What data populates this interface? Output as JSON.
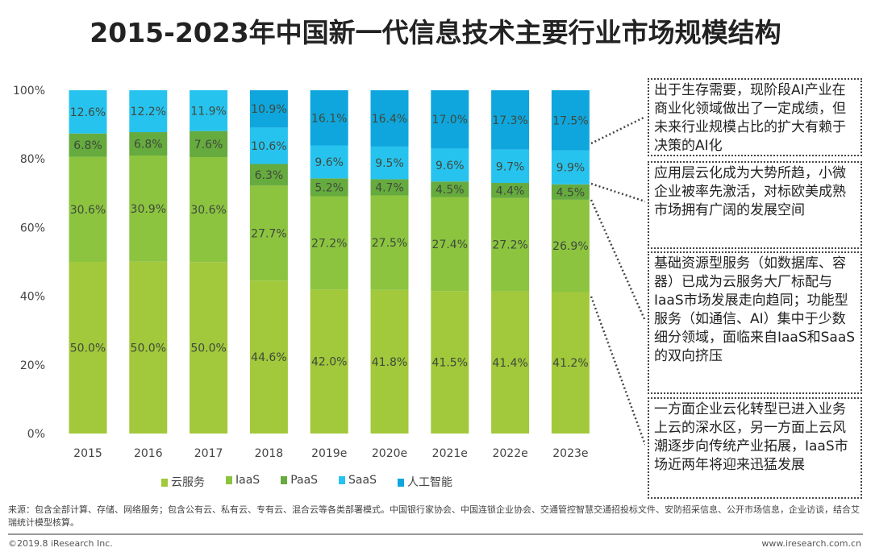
{
  "title": "2015-2023年中国新一代信息技术主要行业市场规模结构",
  "chart_data": {
    "type": "bar",
    "stacked": true,
    "title": "2015-2023年中国新一代信息技术主要行业市场规模结构",
    "categories": [
      "2015",
      "2016",
      "2017",
      "2018",
      "2019e",
      "2020e",
      "2021e",
      "2022e",
      "2023e"
    ],
    "series": [
      {
        "name": "云服务",
        "color": "#a2c83b",
        "values": [
          50.0,
          50.0,
          50.0,
          44.6,
          42.0,
          41.8,
          41.5,
          41.4,
          41.2
        ]
      },
      {
        "name": "IaaS",
        "color": "#8cc440",
        "values": [
          30.6,
          30.9,
          30.6,
          27.7,
          27.2,
          27.5,
          27.4,
          27.2,
          26.9
        ]
      },
      {
        "name": "PaaS",
        "color": "#66ab3e",
        "values": [
          6.8,
          6.8,
          7.6,
          6.3,
          5.2,
          4.7,
          4.5,
          4.4,
          4.5
        ]
      },
      {
        "name": "SaaS",
        "color": "#27c3ef",
        "values": [
          12.6,
          12.2,
          11.9,
          10.6,
          9.6,
          9.5,
          9.6,
          9.7,
          9.9
        ]
      },
      {
        "name": "人工智能",
        "color": "#0fa6de",
        "values": [
          null,
          null,
          null,
          10.9,
          16.1,
          16.4,
          17.0,
          17.3,
          17.5
        ]
      }
    ],
    "yticks": [
      "0%",
      "20%",
      "40%",
      "60%",
      "80%",
      "100%"
    ],
    "ylim": [
      0,
      100
    ],
    "legend": "bottom"
  },
  "annotations": [
    "出于生存需要，现阶段AI产业在商业化领域做出了一定成绩，但未来行业规模占比的扩大有赖于决策的AI化",
    "应用层云化成为大势所趋，小微企业被率先激活，对标欧美成熟市场拥有广阔的发展空间",
    "基础资源型服务（如数据库、容器）已成为云服务大厂标配与IaaS市场发展走向趋同；功能型服务（如通信、AI）集中于少数细分领域，面临来自IaaS和SaaS的双向挤压",
    "一方面企业云化转型已进入业务上云的深水区，另一方面上云风潮逐步向传统产业拓展，IaaS市场近两年将迎来迅猛发展"
  ],
  "note": "来源：包含全部计算、存储、网络服务；包含公有云、私有云、专有云、混合云等各类部署模式。中国银行家协会、中国连锁企业协会、交通管控智慧交通招投标文件、安防招采信息、公开市场信息，企业访谈，结合艾瑞统计模型核算。",
  "copyright": "©2019.8 iResearch Inc.",
  "site": "www.iresearch.com.cn"
}
